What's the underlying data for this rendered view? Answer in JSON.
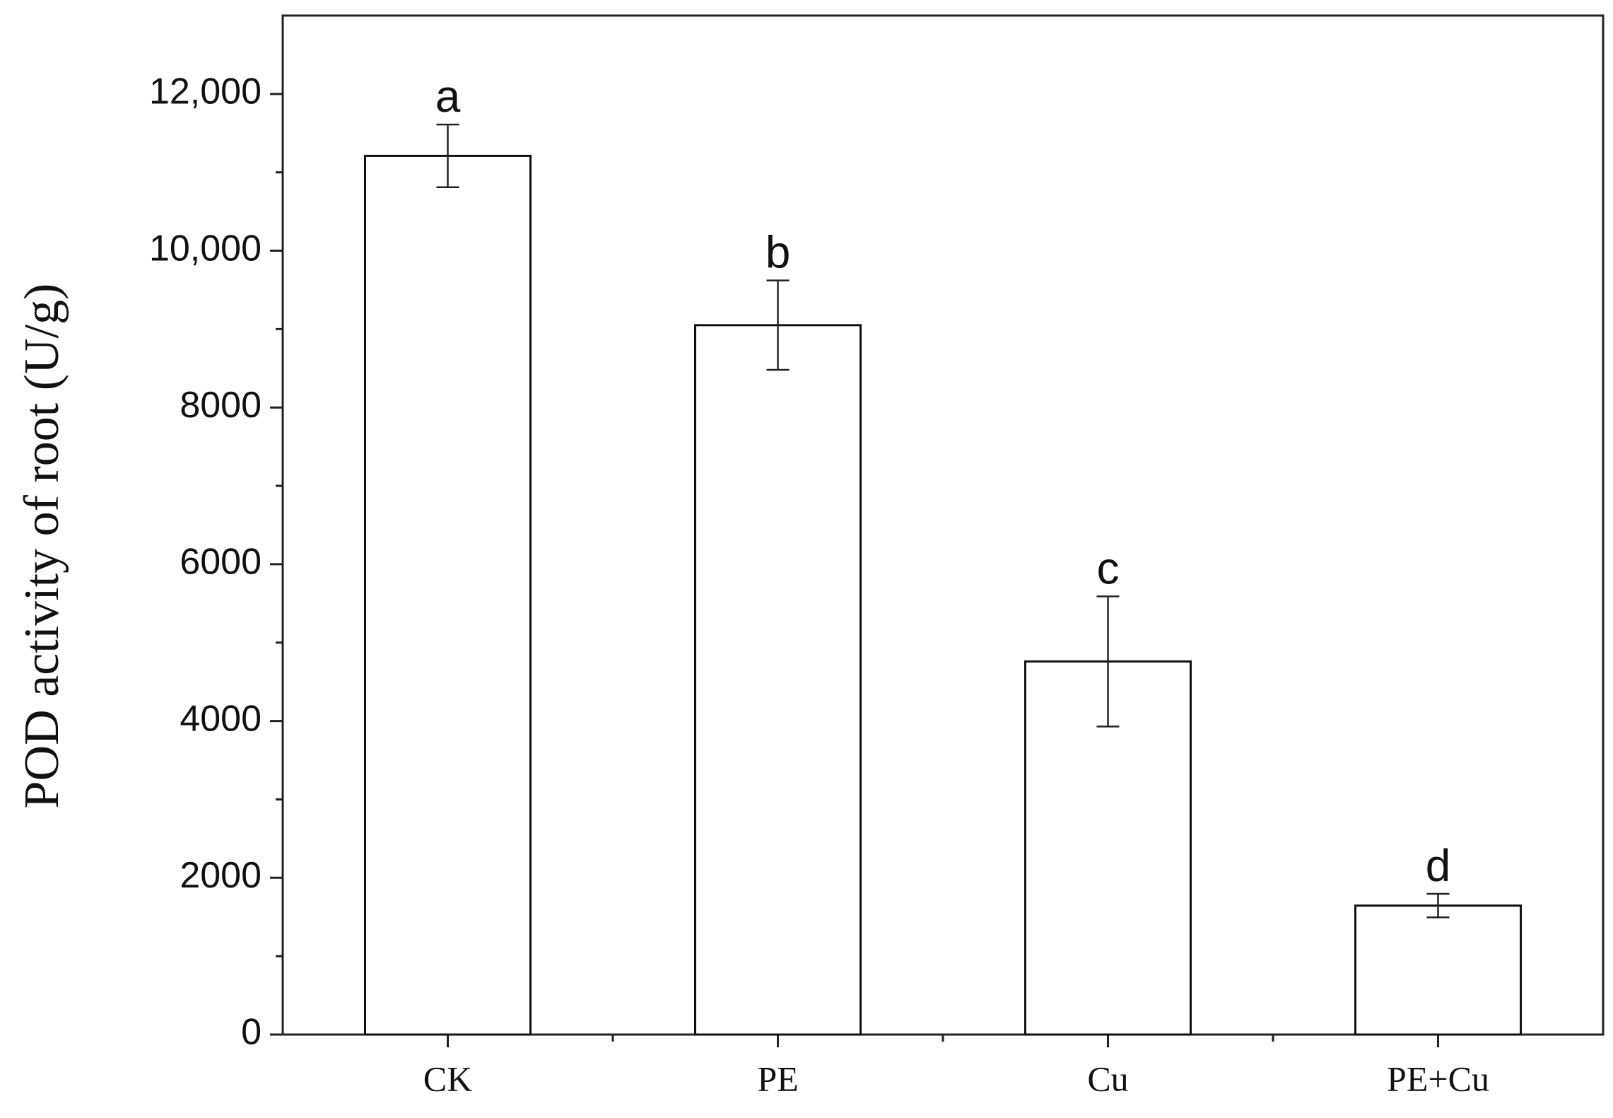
{
  "chart_data": {
    "type": "bar",
    "y_label": "POD activity of root (U/g)",
    "categories": [
      "CK",
      "PE",
      "Cu",
      "PE+Cu"
    ],
    "values": [
      11210,
      9050,
      4760,
      1645
    ],
    "errors": [
      400,
      570,
      830,
      150
    ],
    "value_labels": [
      "a",
      "b",
      "c",
      "d"
    ],
    "color": "#ffffff",
    "ylim": [
      0,
      13000
    ],
    "yticks": [
      0,
      2000,
      4000,
      6000,
      8000,
      {
        "value": 10000,
        "label": "10,000"
      },
      {
        "value": 12000,
        "label": "12,000"
      }
    ],
    "minor_yticks": [
      1000,
      3000,
      5000,
      7000,
      9000,
      11000
    ],
    "grid": false
  }
}
